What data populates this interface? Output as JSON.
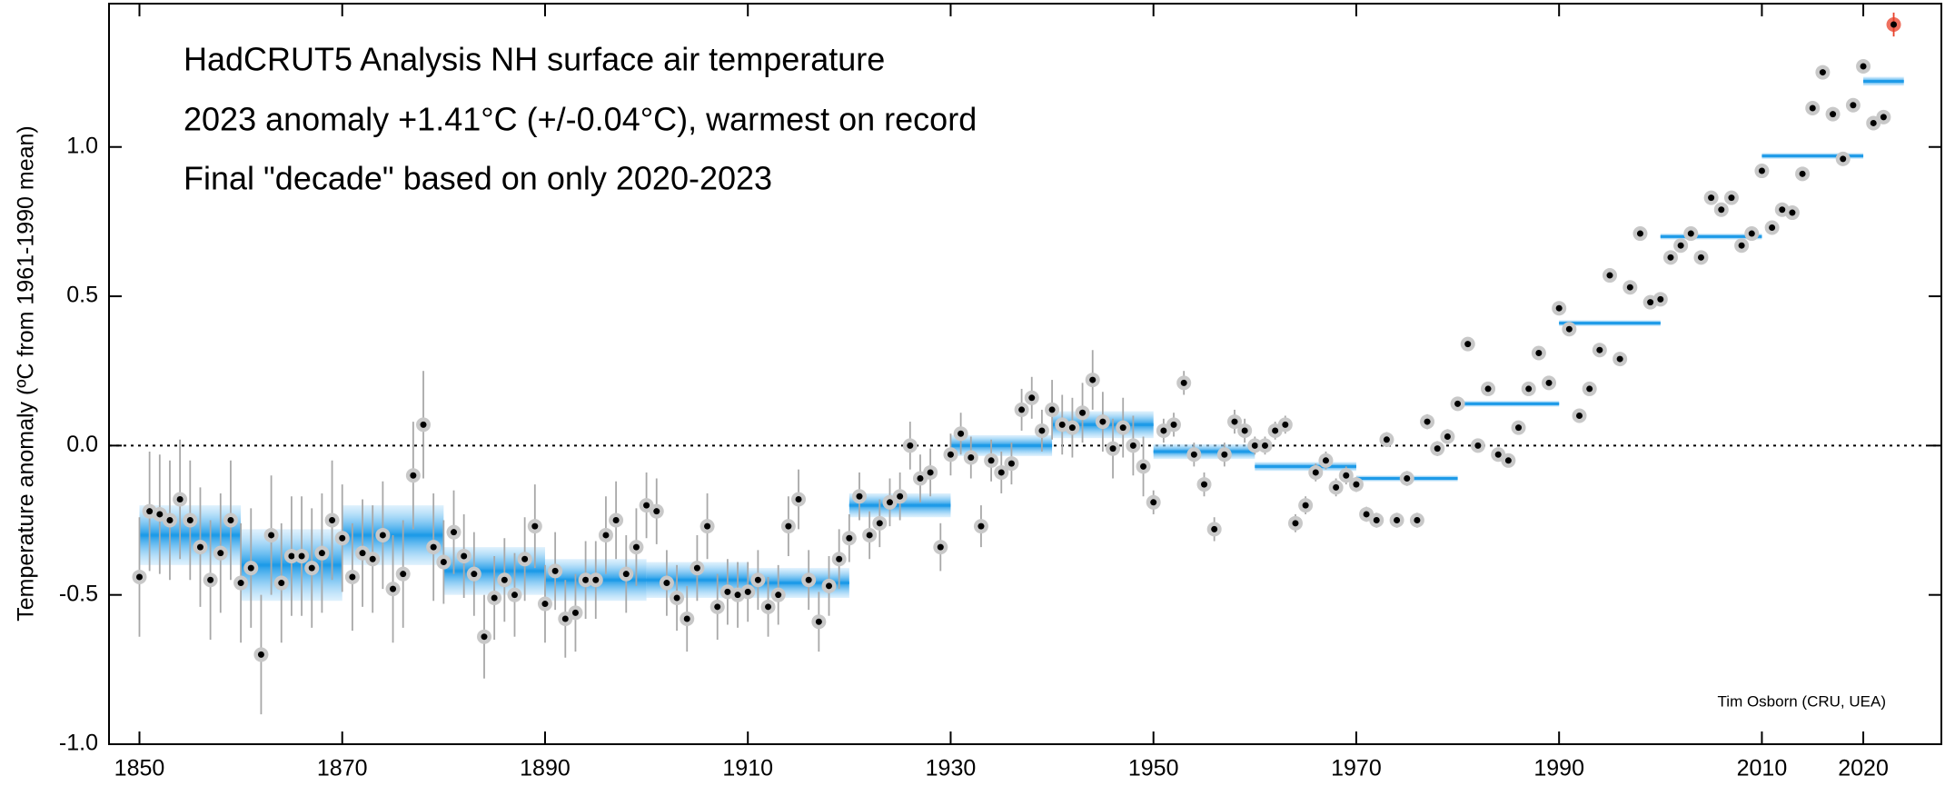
{
  "chart_data": {
    "type": "scatter",
    "title_lines": [
      "HadCRUT5 Analysis NH surface air temperature",
      "2023 anomaly +1.41°C (+/-0.04°C), warmest on record",
      "Final \"decade\" based on only 2020-2023"
    ],
    "title_colors": [
      "#000000",
      "#ff0000",
      "#000000"
    ],
    "y_label": "Temperature anomaly (ºC from 1961-1990 mean)",
    "credit": "Tim Osborn (CRU, UEA)",
    "xlim": [
      1847,
      2027.7
    ],
    "ylim": [
      -1.0,
      1.48
    ],
    "xticks": [
      1850,
      1870,
      1890,
      1910,
      1930,
      1950,
      1970,
      1990,
      2010,
      2020
    ],
    "yticks": [
      {
        "value": -1.0,
        "label": "-1.0"
      },
      {
        "value": -0.5,
        "label": "-0.5"
      },
      {
        "value": 0.0,
        "label": "0.0"
      },
      {
        "value": 0.5,
        "label": "0.5"
      },
      {
        "value": 1.0,
        "label": "1.0"
      }
    ],
    "reference_line": 0,
    "series": [
      {
        "color": "#000000",
        "x": [
          1850,
          1851,
          1852,
          1853,
          1854,
          1855,
          1856,
          1857,
          1858,
          1859,
          1860,
          1861,
          1862,
          1863,
          1864,
          1865,
          1866,
          1867,
          1868,
          1869,
          1870,
          1871,
          1872,
          1873,
          1874,
          1875,
          1876,
          1877,
          1878,
          1879,
          1880,
          1881,
          1882,
          1883,
          1884,
          1885,
          1886,
          1887,
          1888,
          1889,
          1890,
          1891,
          1892,
          1893,
          1894,
          1895,
          1896,
          1897,
          1898,
          1899,
          1900,
          1901,
          1902,
          1903,
          1904,
          1905,
          1906,
          1907,
          1908,
          1909,
          1910,
          1911,
          1912,
          1913,
          1914,
          1915,
          1916,
          1917,
          1918,
          1919,
          1920,
          1921,
          1922,
          1923,
          1924,
          1925,
          1926,
          1927,
          1928,
          1929,
          1930,
          1931,
          1932,
          1933,
          1934,
          1935,
          1936,
          1937,
          1938,
          1939,
          1940,
          1941,
          1942,
          1943,
          1944,
          1945,
          1946,
          1947,
          1948,
          1949,
          1950,
          1951,
          1952,
          1953,
          1954,
          1955,
          1956,
          1957,
          1958,
          1959,
          1960,
          1961,
          1962,
          1963,
          1964,
          1965,
          1966,
          1967,
          1968,
          1969,
          1970,
          1971,
          1972,
          1973,
          1974,
          1975,
          1976,
          1977,
          1978,
          1979,
          1980,
          1981,
          1982,
          1983,
          1984,
          1985,
          1986,
          1987,
          1988,
          1989,
          1990,
          1991,
          1992,
          1993,
          1994,
          1995,
          1996,
          1997,
          1998,
          1999,
          2000,
          2001,
          2002,
          2003,
          2004,
          2005,
          2006,
          2007,
          2008,
          2009,
          2010,
          2011,
          2012,
          2013,
          2014,
          2015,
          2016,
          2017,
          2018,
          2019,
          2020,
          2021,
          2022
        ],
        "values": [
          -0.44,
          -0.22,
          -0.23,
          -0.25,
          -0.18,
          -0.25,
          -0.34,
          -0.45,
          -0.36,
          -0.25,
          -0.46,
          -0.41,
          -0.7,
          -0.3,
          -0.46,
          -0.37,
          -0.37,
          -0.41,
          -0.36,
          -0.25,
          -0.31,
          -0.44,
          -0.36,
          -0.38,
          -0.3,
          -0.48,
          -0.43,
          -0.1,
          0.07,
          -0.34,
          -0.39,
          -0.29,
          -0.37,
          -0.43,
          -0.64,
          -0.51,
          -0.45,
          -0.5,
          -0.38,
          -0.27,
          -0.53,
          -0.42,
          -0.58,
          -0.56,
          -0.45,
          -0.45,
          -0.3,
          -0.25,
          -0.43,
          -0.34,
          -0.2,
          -0.22,
          -0.46,
          -0.51,
          -0.58,
          -0.41,
          -0.27,
          -0.54,
          -0.49,
          -0.5,
          -0.49,
          -0.45,
          -0.54,
          -0.5,
          -0.27,
          -0.18,
          -0.45,
          -0.59,
          -0.47,
          -0.38,
          -0.31,
          -0.17,
          -0.3,
          -0.26,
          -0.19,
          -0.17,
          0.0,
          -0.11,
          -0.09,
          -0.34,
          -0.03,
          0.04,
          -0.04,
          -0.27,
          -0.05,
          -0.09,
          -0.06,
          0.12,
          0.16,
          0.05,
          0.12,
          0.07,
          0.06,
          0.11,
          0.22,
          0.08,
          -0.01,
          0.06,
          0.0,
          -0.07,
          -0.19,
          0.05,
          0.07,
          0.21,
          -0.03,
          -0.13,
          -0.28,
          -0.03,
          0.08,
          0.05,
          0.0,
          0.0,
          0.05,
          0.07,
          -0.26,
          -0.2,
          -0.09,
          -0.05,
          -0.14,
          -0.1,
          -0.13,
          -0.23,
          -0.25,
          0.02,
          -0.25,
          -0.11,
          -0.25,
          0.08,
          -0.01,
          0.03,
          0.14,
          0.34,
          0.0,
          0.19,
          -0.03,
          -0.05,
          0.06,
          0.19,
          0.31,
          0.21,
          0.46,
          0.39,
          0.1,
          0.19,
          0.32,
          0.57,
          0.29,
          0.53,
          0.71,
          0.48,
          0.49,
          0.63,
          0.67,
          0.71,
          0.63,
          0.83,
          0.79,
          0.83,
          0.67,
          0.71,
          0.92,
          0.73,
          0.79,
          0.78,
          0.91,
          1.13,
          1.25,
          1.11,
          0.96,
          1.14,
          1.27,
          1.08,
          1.1
        ],
        "errors": [
          0.2,
          0.2,
          0.2,
          0.2,
          0.2,
          0.2,
          0.2,
          0.2,
          0.2,
          0.2,
          0.2,
          0.2,
          0.2,
          0.2,
          0.2,
          0.2,
          0.2,
          0.2,
          0.2,
          0.2,
          0.18,
          0.18,
          0.18,
          0.18,
          0.18,
          0.18,
          0.18,
          0.18,
          0.18,
          0.18,
          0.14,
          0.14,
          0.14,
          0.14,
          0.14,
          0.14,
          0.14,
          0.14,
          0.14,
          0.14,
          0.13,
          0.13,
          0.13,
          0.13,
          0.13,
          0.13,
          0.13,
          0.13,
          0.13,
          0.13,
          0.11,
          0.11,
          0.11,
          0.11,
          0.11,
          0.11,
          0.11,
          0.11,
          0.11,
          0.11,
          0.1,
          0.1,
          0.1,
          0.1,
          0.1,
          0.1,
          0.1,
          0.1,
          0.1,
          0.1,
          0.08,
          0.08,
          0.08,
          0.08,
          0.08,
          0.08,
          0.08,
          0.08,
          0.08,
          0.08,
          0.07,
          0.07,
          0.07,
          0.07,
          0.07,
          0.07,
          0.07,
          0.07,
          0.07,
          0.07,
          0.1,
          0.1,
          0.1,
          0.1,
          0.1,
          0.1,
          0.1,
          0.1,
          0.1,
          0.1,
          0.04,
          0.04,
          0.04,
          0.04,
          0.04,
          0.04,
          0.04,
          0.04,
          0.04,
          0.04,
          0.03,
          0.03,
          0.03,
          0.03,
          0.03,
          0.03,
          0.03,
          0.03,
          0.03,
          0.03,
          0.025,
          0.025,
          0.025,
          0.025,
          0.025,
          0.025,
          0.025,
          0.025,
          0.025,
          0.025,
          0.02,
          0.02,
          0.02,
          0.02,
          0.02,
          0.02,
          0.02,
          0.02,
          0.02,
          0.02,
          0.02,
          0.02,
          0.02,
          0.02,
          0.02,
          0.02,
          0.02,
          0.02,
          0.02,
          0.02,
          0.02,
          0.02,
          0.02,
          0.02,
          0.02,
          0.02,
          0.02,
          0.02,
          0.02,
          0.02,
          0.02,
          0.02,
          0.02,
          0.02,
          0.02,
          0.02,
          0.02,
          0.02,
          0.02,
          0.02,
          0.02,
          0.02,
          0.02
        ]
      },
      {
        "color": "#e8402a",
        "x": [
          2023
        ],
        "values": [
          1.41
        ],
        "errors": [
          0.04
        ]
      }
    ],
    "decade_color": "#1e9be8",
    "decades": [
      {
        "start": 1850,
        "end": 1860,
        "value": -0.3,
        "uncertainty": 0.1
      },
      {
        "start": 1860,
        "end": 1870,
        "value": -0.4,
        "uncertainty": 0.12
      },
      {
        "start": 1870,
        "end": 1880,
        "value": -0.3,
        "uncertainty": 0.1
      },
      {
        "start": 1880,
        "end": 1890,
        "value": -0.42,
        "uncertainty": 0.08
      },
      {
        "start": 1890,
        "end": 1900,
        "value": -0.45,
        "uncertainty": 0.07
      },
      {
        "start": 1900,
        "end": 1910,
        "value": -0.45,
        "uncertainty": 0.06
      },
      {
        "start": 1910,
        "end": 1920,
        "value": -0.46,
        "uncertainty": 0.05
      },
      {
        "start": 1920,
        "end": 1930,
        "value": -0.2,
        "uncertainty": 0.04
      },
      {
        "start": 1930,
        "end": 1940,
        "value": 0.0,
        "uncertainty": 0.035
      },
      {
        "start": 1940,
        "end": 1950,
        "value": 0.07,
        "uncertainty": 0.045
      },
      {
        "start": 1950,
        "end": 1960,
        "value": -0.02,
        "uncertainty": 0.025
      },
      {
        "start": 1960,
        "end": 1970,
        "value": -0.07,
        "uncertainty": 0.015
      },
      {
        "start": 1970,
        "end": 1980,
        "value": -0.11,
        "uncertainty": 0.01
      },
      {
        "start": 1980,
        "end": 1990,
        "value": 0.14,
        "uncertainty": 0.01
      },
      {
        "start": 1990,
        "end": 2000,
        "value": 0.41,
        "uncertainty": 0.01
      },
      {
        "start": 2000,
        "end": 2010,
        "value": 0.7,
        "uncertainty": 0.01
      },
      {
        "start": 2010,
        "end": 2020,
        "value": 0.97,
        "uncertainty": 0.01
      },
      {
        "start": 2020,
        "end": 2024,
        "value": 1.22,
        "uncertainty": 0.015
      }
    ]
  }
}
